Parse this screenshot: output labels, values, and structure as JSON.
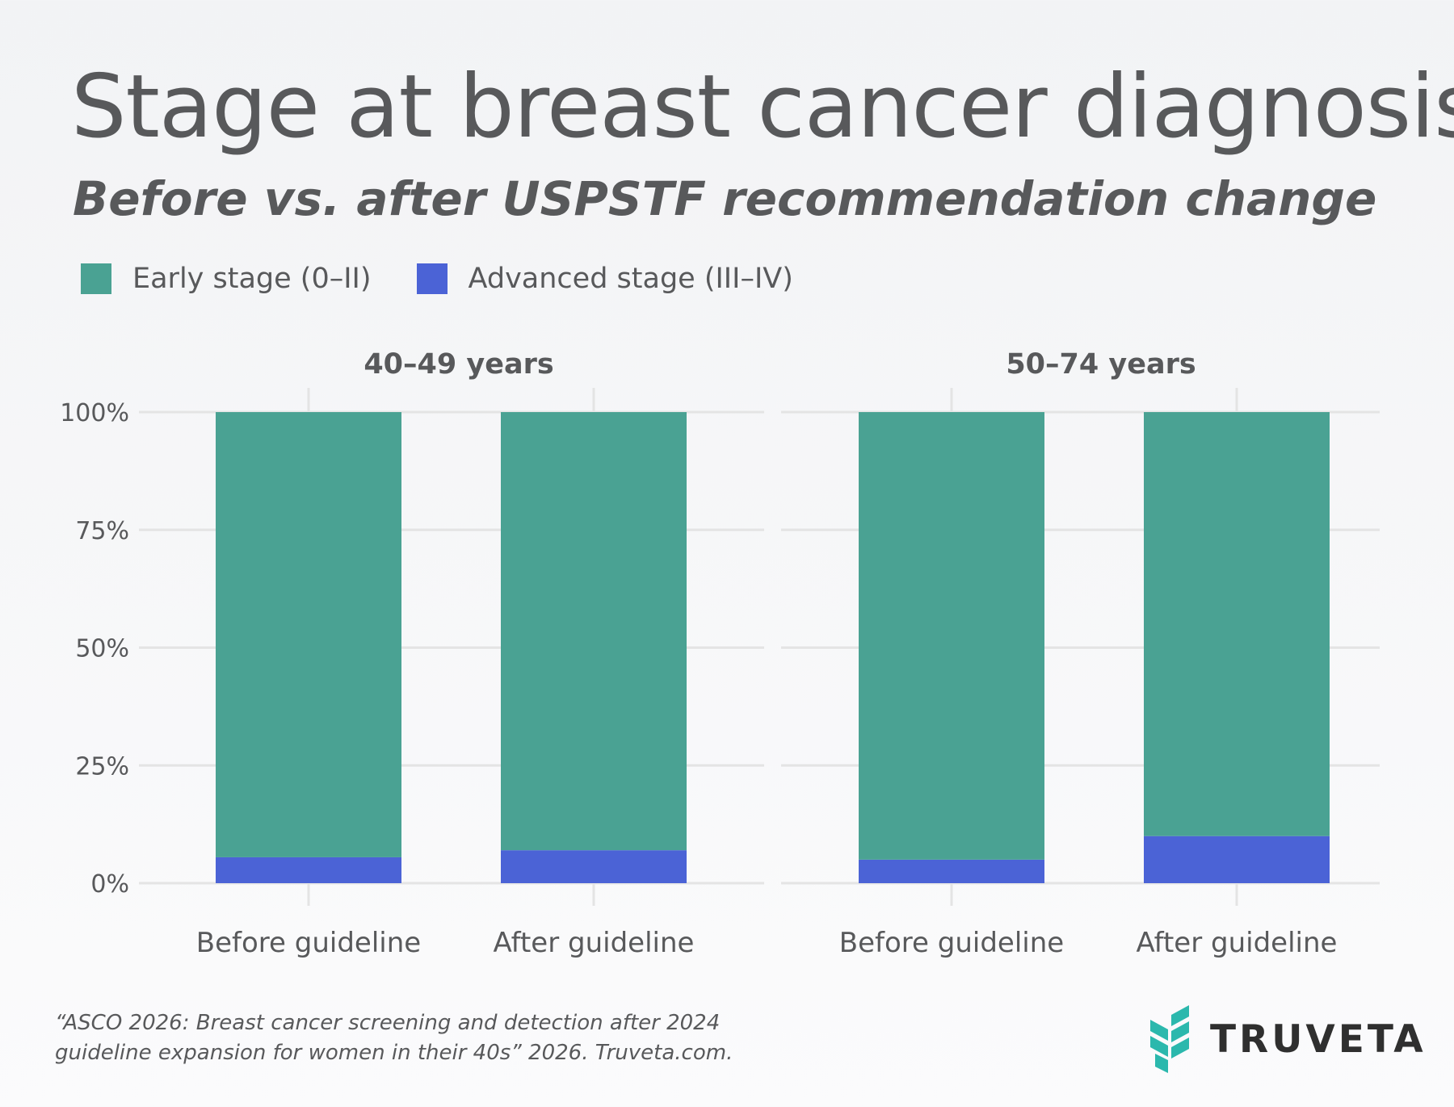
{
  "header": {
    "title": "Stage at breast cancer diagnosis",
    "subtitle": "Before vs. after USPSTF recommendation change"
  },
  "colors": {
    "early": "#4aa293",
    "advanced": "#4b63d6",
    "grid": "#e4e4e4",
    "text": "#58595b"
  },
  "chart_data": {
    "type": "bar",
    "stacked": true,
    "legend_position": "top-left",
    "grid": true,
    "ylim": [
      0,
      100
    ],
    "y_ticks": [
      "0%",
      "25%",
      "50%",
      "75%",
      "100%"
    ],
    "categories": [
      "Before guideline",
      "After guideline"
    ],
    "series_names": [
      "Early stage (0–II)",
      "Advanced stage (III–IV)"
    ],
    "panels": [
      {
        "title": "40–49 years",
        "series": [
          {
            "name": "Advanced stage (III–IV)",
            "values": [
              5.5,
              7
            ]
          },
          {
            "name": "Early stage (0–II)",
            "values": [
              94.5,
              93
            ]
          }
        ]
      },
      {
        "title": "50–74 years",
        "series": [
          {
            "name": "Advanced stage (III–IV)",
            "values": [
              5,
              10
            ]
          },
          {
            "name": "Early stage (0–II)",
            "values": [
              95,
              90
            ]
          }
        ]
      }
    ]
  },
  "footer": {
    "source_line1": "“ASCO 2026: Breast cancer screening and detection after 2024",
    "source_line2": "guideline expansion for women in their 40s” 2026. Truveta.com.",
    "logo_text": "TRUVETA",
    "logo_icon": "truveta-logo-icon"
  }
}
